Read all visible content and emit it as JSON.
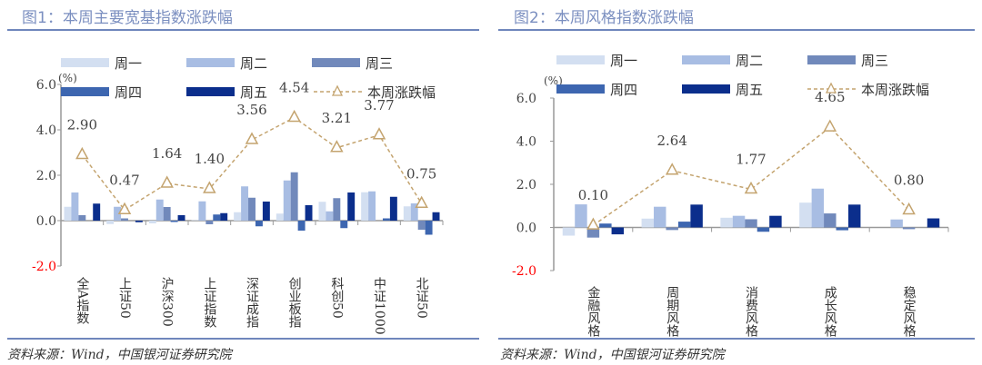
{
  "figures": [
    {
      "title": "图1：本周主要宽基指数涨跌幅",
      "source": "资料来源：Wind，中国银河证券研究院"
    },
    {
      "title": "图2：本周风格指数涨跌幅",
      "source": "资料来源：Wind，中国银河证券研究院"
    }
  ],
  "colors": {
    "周一": "#d3dff1",
    "周二": "#a8bde3",
    "周三": "#7189bb",
    "周四": "#3d66b0",
    "周五": "#0b2e8c",
    "line": "#c4a46f",
    "title": "#7b8fc0",
    "negative_tick": "#ff0000"
  },
  "chart_data": [
    {
      "type": "bar+line",
      "unit_label": "(%)",
      "ylim": [
        -2,
        6
      ],
      "yticks": [
        "6.0",
        "4.0",
        "2.0",
        "0.0",
        "-2.0"
      ],
      "ytick_values": [
        6,
        4,
        2,
        0,
        -2
      ],
      "categories": [
        "全A指数",
        "上证50",
        "沪深300",
        "上证指数",
        "深证成指",
        "创业板指",
        "科创50",
        "中证1000",
        "北证50"
      ],
      "series": [
        {
          "name": "周一",
          "type": "bar",
          "values": [
            0.61,
            -0.15,
            -0.12,
            0.02,
            0.37,
            0.31,
            0.83,
            1.25,
            0.63
          ]
        },
        {
          "name": "周二",
          "type": "bar",
          "values": [
            1.24,
            0.61,
            0.93,
            0.85,
            1.51,
            1.77,
            0.41,
            1.29,
            0.76
          ]
        },
        {
          "name": "周三",
          "type": "bar",
          "values": [
            0.24,
            0.1,
            0.6,
            -0.16,
            1.01,
            2.13,
            0.99,
            0.0,
            -0.4
          ]
        },
        {
          "name": "周四",
          "type": "bar",
          "values": [
            0.0,
            0.0,
            -0.06,
            0.27,
            -0.25,
            -0.44,
            -0.33,
            0.1,
            -0.62
          ]
        },
        {
          "name": "周五",
          "type": "bar",
          "values": [
            0.75,
            -0.07,
            0.24,
            0.33,
            0.84,
            0.68,
            1.24,
            1.05,
            0.37
          ]
        },
        {
          "name": "本周涨跌幅",
          "type": "line",
          "values": [
            2.9,
            0.47,
            1.64,
            1.4,
            3.56,
            4.54,
            3.21,
            3.77,
            0.75
          ],
          "labels": [
            "2.90",
            "0.47",
            "1.64",
            "1.40",
            "3.56",
            "4.54",
            "3.21",
            "3.77",
            "0.75"
          ]
        }
      ],
      "legend": "top"
    },
    {
      "type": "bar+line",
      "unit_label": "(%)",
      "ylim": [
        -2,
        6
      ],
      "yticks": [
        "6.0",
        "4.0",
        "2.0",
        "0.0",
        "-2.0"
      ],
      "ytick_values": [
        6,
        4,
        2,
        0,
        -2
      ],
      "categories": [
        "金融风格",
        "周期风格",
        "消费风格",
        "成长风格",
        "稳定风格"
      ],
      "series": [
        {
          "name": "周一",
          "type": "bar",
          "values": [
            -0.38,
            0.41,
            0.45,
            1.15,
            0.0
          ]
        },
        {
          "name": "周二",
          "type": "bar",
          "values": [
            1.07,
            0.96,
            0.54,
            1.8,
            0.37
          ]
        },
        {
          "name": "周三",
          "type": "bar",
          "values": [
            -0.47,
            -0.12,
            0.38,
            0.65,
            -0.08
          ]
        },
        {
          "name": "周四",
          "type": "bar",
          "values": [
            0.18,
            0.27,
            -0.2,
            -0.13,
            0.0
          ]
        },
        {
          "name": "周五",
          "type": "bar",
          "values": [
            -0.32,
            1.06,
            0.54,
            1.06,
            0.42
          ]
        },
        {
          "name": "本周涨跌幅",
          "type": "line",
          "values": [
            0.1,
            2.64,
            1.77,
            4.65,
            0.8
          ],
          "labels": [
            "0.10",
            "2.64",
            "1.77",
            "4.65",
            "0.80"
          ]
        }
      ],
      "legend": "top"
    }
  ]
}
